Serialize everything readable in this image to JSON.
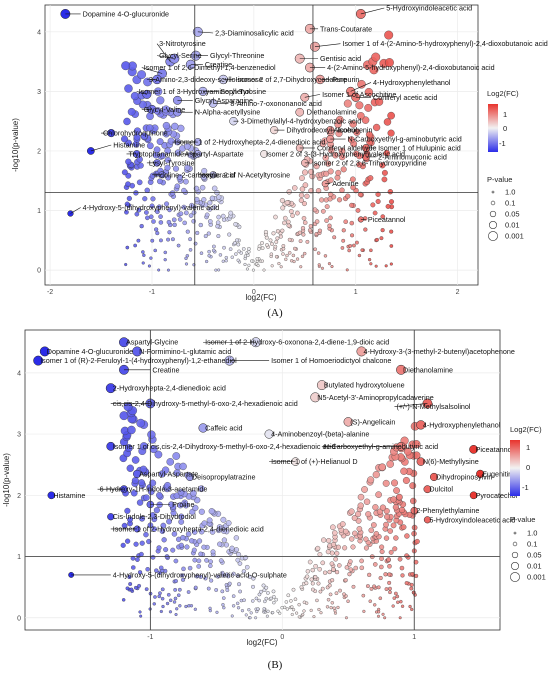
{
  "colors": {
    "high": "#e8332d",
    "mid": "#f2f2f2",
    "low": "#2b2ce8",
    "grid": "#ebebeb",
    "threshold": "#333333"
  },
  "chart_data": [
    {
      "type": "scatter",
      "panel_label": "(A)",
      "xlabel": "log2(FC)",
      "ylabel": "-log10(p-value)",
      "xlim": [
        -2.05,
        2.2
      ],
      "ylim": [
        -0.25,
        4.45
      ],
      "x_ticks": [
        -2,
        -1,
        0,
        1,
        2
      ],
      "y_ticks": [
        0,
        1,
        2,
        3,
        4
      ],
      "thresholds": {
        "x": [
          -0.58,
          0.58
        ],
        "y": 1.3
      },
      "grid": true,
      "legend_position": "right",
      "color_legend": {
        "title": "Log2(FC)",
        "ticks": [
          "1",
          "0",
          "-1"
        ],
        "range": [
          -1.6,
          1.6
        ]
      },
      "size_legend": {
        "title": "P-value",
        "labels": [
          "1.0",
          "0.1",
          "0.05",
          "0.01",
          "0.001"
        ]
      },
      "labeled_points": [
        {
          "label": "Dopamine 4-O-glucuronide",
          "x": -1.85,
          "y": 4.3,
          "lx": -1.7,
          "ly": 4.3
        },
        {
          "label": "5-Hydroxyindoleacetic acid",
          "x": 1.05,
          "y": 4.3,
          "lx": 1.28,
          "ly": 4.4
        },
        {
          "label": "2,3-Diaminosalicylic acid",
          "x": -0.55,
          "y": 4.0,
          "lx": -0.4,
          "ly": 3.98
        },
        {
          "label": "Trans-Coutarate",
          "x": 0.55,
          "y": 4.05,
          "lx": 0.63,
          "ly": 4.05
        },
        {
          "label": "3-Nitrotyrosine",
          "x": -0.82,
          "y": 3.5,
          "lx": -0.95,
          "ly": 3.8
        },
        {
          "label": "Isomer 1 of 4-(2-Amino-5-hydroxyphenyl)-2,4-dioxobutanoic acid",
          "x": 0.6,
          "y": 3.75,
          "lx": 0.85,
          "ly": 3.8
        },
        {
          "label": "Glycyl-Serine",
          "x": -0.78,
          "y": 3.55,
          "lx": -0.95,
          "ly": 3.6
        },
        {
          "label": "Glycyl-Threonine",
          "x": -0.57,
          "y": 3.6,
          "lx": -0.45,
          "ly": 3.6
        },
        {
          "label": "Gentisic acid",
          "x": 0.45,
          "y": 3.55,
          "lx": 0.63,
          "ly": 3.55
        },
        {
          "label": "Isomer 1 of 2,6-Dimethyl-1,4-benzenediol",
          "x": -0.9,
          "y": 3.3,
          "lx": -1.1,
          "ly": 3.4
        },
        {
          "label": "Creatine",
          "x": -0.62,
          "y": 3.45,
          "lx": -0.5,
          "ly": 3.45
        },
        {
          "label": "4-(2-Amino-5-hydroxyphenyl)-2,4-dioxobutanoic acid",
          "x": 0.55,
          "y": 3.4,
          "lx": 0.7,
          "ly": 3.4
        },
        {
          "label": "3-Amino-2,3-dideoxy-scyllo-inosose",
          "x": -0.95,
          "y": 3.2,
          "lx": -1.05,
          "ly": 3.2
        },
        {
          "label": "Isomer 2 of 2,7-Dihydroxycadalene",
          "x": -0.3,
          "y": 3.2,
          "lx": -0.2,
          "ly": 3.2
        },
        {
          "label": "Purpurin",
          "x": 0.65,
          "y": 3.2,
          "lx": 0.75,
          "ly": 3.2
        },
        {
          "label": "4-Hydroxyphenylethanol",
          "x": 0.95,
          "y": 3.0,
          "lx": 1.15,
          "ly": 3.15
        },
        {
          "label": "Isomer 1 of 3-Hydroxyaminophenol",
          "x": -1.05,
          "y": 2.95,
          "lx": -1.15,
          "ly": 3.0
        },
        {
          "label": "Seryl-Tyrosine",
          "x": -0.5,
          "y": 3.0,
          "lx": -0.35,
          "ly": 3.0
        },
        {
          "label": "Isomer 1 of Ascochitine",
          "x": 0.5,
          "y": 2.9,
          "lx": 0.65,
          "ly": 2.95
        },
        {
          "label": "Coniferyl acetic acid",
          "x": 1.0,
          "y": 2.9,
          "lx": 1.15,
          "ly": 2.9
        },
        {
          "label": "Glycyl-Asparagine",
          "x": -0.75,
          "y": 2.85,
          "lx": -0.6,
          "ly": 2.85
        },
        {
          "label": "8-Amino-7-oxononanoic acid",
          "x": -0.4,
          "y": 2.8,
          "lx": -0.25,
          "ly": 2.8
        },
        {
          "label": "Glycyl-Valine",
          "x": -1.0,
          "y": 2.7,
          "lx": -1.1,
          "ly": 2.7
        },
        {
          "label": "N-Alpha-acetyllysine",
          "x": -0.75,
          "y": 2.65,
          "lx": -0.6,
          "ly": 2.65
        },
        {
          "label": "Diethanolamine",
          "x": 0.45,
          "y": 2.65,
          "lx": 0.5,
          "ly": 2.65
        },
        {
          "label": "3-Dimethylallyl-4-hydroxybenzoic acid",
          "x": -0.2,
          "y": 2.5,
          "lx": -0.15,
          "ly": 2.5
        },
        {
          "label": "Chlorohydroquinone",
          "x": -1.4,
          "y": 2.3,
          "lx": -1.5,
          "ly": 2.3
        },
        {
          "label": "Dihydrodeoxyl Alcohol",
          "x": 0.2,
          "y": 2.35,
          "lx": 0.3,
          "ly": 2.35
        },
        {
          "label": "Isoeugenin",
          "x": 0.75,
          "y": 2.35,
          "lx": 0.8,
          "ly": 2.35
        },
        {
          "label": "Histamine",
          "x": -1.6,
          "y": 2.0,
          "lx": -1.4,
          "ly": 2.1
        },
        {
          "label": "Isomer 1 of 2-Hydroxyhepta-2,4-dienedioic acid",
          "x": -0.55,
          "y": 2.15,
          "lx": -0.8,
          "ly": 2.15
        },
        {
          "label": "N-Carboxyethyl-g-aminobutyric acid",
          "x": 0.75,
          "y": 2.2,
          "lx": 0.9,
          "ly": 2.2
        },
        {
          "label": "Coniferyl aldehyde",
          "x": 0.45,
          "y": 2.05,
          "lx": 0.6,
          "ly": 2.05
        },
        {
          "label": "Tryptophanamide",
          "x": -1.15,
          "y": 1.95,
          "lx": -1.25,
          "ly": 1.95
        },
        {
          "label": "Aspartyl-Aspartate",
          "x": -0.55,
          "y": 1.95,
          "lx": -0.7,
          "ly": 1.95
        },
        {
          "label": "Isomer 2 of 3-(3-Hydroxyphenyl)valeric acid",
          "x": 0.1,
          "y": 1.95,
          "lx": 0.1,
          "ly": 1.95
        },
        {
          "label": "Isomer 1 of Hulupinic acid",
          "x": 1.1,
          "y": 2.05,
          "lx": 1.2,
          "ly": 2.05
        },
        {
          "label": "Lysyl-Tyrosine",
          "x": -0.95,
          "y": 1.8,
          "lx": -1.05,
          "ly": 1.8
        },
        {
          "label": "Isomer 2 of 2,3,6-Trihydroxypyridine",
          "x": 0.5,
          "y": 1.8,
          "lx": 0.55,
          "ly": 1.8
        },
        {
          "label": "2-Aminomuconic acid",
          "x": 1.1,
          "y": 1.9,
          "lx": 1.2,
          "ly": 1.9
        },
        {
          "label": "Indoline-2-carboxylic acid",
          "x": -0.9,
          "y": 1.6,
          "lx": -1.0,
          "ly": 1.6
        },
        {
          "label": "Isomer 2 of N-Acetyltyrosine",
          "x": -0.4,
          "y": 1.6,
          "lx": -0.55,
          "ly": 1.6
        },
        {
          "label": "4-Hydroxy-5-(dihydroxyphenyl)-valeric acid",
          "x": -1.8,
          "y": 0.95,
          "lx": -1.7,
          "ly": 1.05
        },
        {
          "label": "Adenine",
          "x": 0.7,
          "y": 1.45,
          "lx": 0.75,
          "ly": 1.45
        },
        {
          "label": "Piceatannol",
          "x": 1.05,
          "y": 0.85,
          "lx": 1.1,
          "ly": 0.85
        }
      ]
    },
    {
      "type": "scatter",
      "panel_label": "(B)",
      "xlabel": "log2(FC)",
      "ylabel": "-log10(p-value)",
      "xlim": [
        -1.95,
        1.65
      ],
      "ylim": [
        -0.2,
        4.7
      ],
      "x_ticks": [
        -1,
        0,
        1
      ],
      "y_ticks": [
        0,
        1,
        2,
        3,
        4
      ],
      "thresholds": {
        "x": [
          -1.0,
          1.0
        ],
        "y": 1.0
      },
      "grid": true,
      "legend_position": "right",
      "color_legend": {
        "title": "Log2(FC)",
        "ticks": [
          "1",
          "0",
          "-1"
        ],
        "range": [
          -1.5,
          1.5
        ]
      },
      "size_legend": {
        "title": "P-value",
        "labels": [
          "1.0",
          "0.1",
          "0.05",
          "0.01",
          "0.001"
        ]
      },
      "labeled_points": [
        {
          "label": "Aspartyl-Glycine",
          "x": -1.2,
          "y": 4.5,
          "lx": -1.2,
          "ly": 4.5
        },
        {
          "label": "Isomer 1 of 2-Hydroxy-6-oxonona-2,4-diene-1,9-dioic acid",
          "x": -0.2,
          "y": 4.5,
          "lx": -0.6,
          "ly": 4.5
        },
        {
          "label": "Dopamine 4-O-glucuronide",
          "x": -1.8,
          "y": 4.35,
          "lx": -1.8,
          "ly": 4.35
        },
        {
          "label": "N-Formimino-L-glutamic acid",
          "x": -1.1,
          "y": 4.35,
          "lx": -1.1,
          "ly": 4.35
        },
        {
          "label": "4-Hydroxy-3-(3-methyl-2-butenyl)acetophenone",
          "x": 0.6,
          "y": 4.35,
          "lx": 0.6,
          "ly": 4.35
        },
        {
          "label": "Isomer 1 of (R)-2-Feruloyl-1-(4-hydroxyphenyl)-1,2-ethanediol",
          "x": -1.85,
          "y": 4.2,
          "lx": -1.85,
          "ly": 4.2
        },
        {
          "label": "Isomer 1 of Homoeriodictyol chalcone",
          "x": -0.4,
          "y": 4.2,
          "lx": -0.1,
          "ly": 4.2
        },
        {
          "label": "Diethanolamine",
          "x": 0.9,
          "y": 4.05,
          "lx": 0.9,
          "ly": 4.05
        },
        {
          "label": "Creatine",
          "x": -1.2,
          "y": 4.05,
          "lx": -1.0,
          "ly": 4.05
        },
        {
          "label": "Butylated hydroxytoluene",
          "x": 0.3,
          "y": 3.8,
          "lx": 0.3,
          "ly": 3.8
        },
        {
          "label": "2-Hydroxyhepta-2,4-dienedioic acid",
          "x": -1.3,
          "y": 3.75,
          "lx": -1.3,
          "ly": 3.75
        },
        {
          "label": "N5-Acetyl-3'-Aminopropylcadaverine",
          "x": 0.25,
          "y": 3.6,
          "lx": 0.25,
          "ly": 3.6
        },
        {
          "label": "(+/-)-N-Methylsalsolinol",
          "x": 1.1,
          "y": 3.5,
          "lx": 0.85,
          "ly": 3.45
        },
        {
          "label": "cis,cis-2,4-Dihydroxy-5-methyl-6-oxo-2,4-hexadienoic acid",
          "x": -1.0,
          "y": 3.5,
          "lx": -1.3,
          "ly": 3.5
        },
        {
          "label": "(S)-Angelicain",
          "x": 0.5,
          "y": 3.2,
          "lx": 0.5,
          "ly": 3.2
        },
        {
          "label": "4-Hydroxyphenylethanol",
          "x": 1.05,
          "y": 3.15,
          "lx": 1.05,
          "ly": 3.15
        },
        {
          "label": "Caffeic acid",
          "x": -0.6,
          "y": 3.1,
          "lx": -0.6,
          "ly": 3.1
        },
        {
          "label": "4-Aminobenzoyl-(beta)-alanine",
          "x": -0.1,
          "y": 3.0,
          "lx": -0.1,
          "ly": 3.0
        },
        {
          "label": "Isomer 1 of cis,cis-2,4-Dihydroxy-5-methyl-6-oxo-2,4-hexadienoic acid",
          "x": -1.3,
          "y": 2.8,
          "lx": -1.3,
          "ly": 2.8
        },
        {
          "label": "N-Carboxyethyl-g-aminobutyric acid",
          "x": 0.9,
          "y": 2.8,
          "lx": 0.3,
          "ly": 2.8
        },
        {
          "label": "Piceatannol",
          "x": 1.45,
          "y": 2.75,
          "lx": 1.45,
          "ly": 2.75
        },
        {
          "label": "Isomer 1 of (+)-Helianuol D",
          "x": 0.1,
          "y": 2.55,
          "lx": -0.1,
          "ly": 2.55
        },
        {
          "label": "N(6)-Methyllysine",
          "x": 1.05,
          "y": 2.55,
          "lx": 1.05,
          "ly": 2.55
        },
        {
          "label": "Aspartyl-Aspartate",
          "x": -1.1,
          "y": 2.35,
          "lx": -1.1,
          "ly": 2.35
        },
        {
          "label": "Deisopropylatrazine",
          "x": -0.7,
          "y": 2.3,
          "lx": -0.7,
          "ly": 2.3
        },
        {
          "label": "Eugenitin",
          "x": 1.5,
          "y": 2.35,
          "lx": 1.5,
          "ly": 2.35
        },
        {
          "label": "Dihydropinosylvin",
          "x": 1.15,
          "y": 2.3,
          "lx": 1.15,
          "ly": 2.3
        },
        {
          "label": "Dulcitol",
          "x": 1.1,
          "y": 2.1,
          "lx": 1.1,
          "ly": 2.1
        },
        {
          "label": "6-Hydroxy-1H-indole-3-acetamide",
          "x": -1.2,
          "y": 2.1,
          "lx": -1.4,
          "ly": 2.1
        },
        {
          "label": "Histamine",
          "x": -1.75,
          "y": 2.0,
          "lx": -1.75,
          "ly": 2.0
        },
        {
          "label": "Pyrocatechol",
          "x": 1.45,
          "y": 2.0,
          "lx": 1.45,
          "ly": 2.0
        },
        {
          "label": "Proline",
          "x": -1.0,
          "y": 1.85,
          "lx": -0.85,
          "ly": 1.85
        },
        {
          "label": "2-Phenylethylamine",
          "x": 1.0,
          "y": 1.75,
          "lx": 1.0,
          "ly": 1.75
        },
        {
          "label": "Cis-Indole-2,3-Dihydrodiol",
          "x": -1.3,
          "y": 1.65,
          "lx": -1.3,
          "ly": 1.65
        },
        {
          "label": "5-Hydroxyindoleacetic acid",
          "x": 1.1,
          "y": 1.6,
          "lx": 1.1,
          "ly": 1.6
        },
        {
          "label": "Isomer 1 of 2-Hydroxyhepta-2,4-dienedioic acid",
          "x": -1.1,
          "y": 1.45,
          "lx": -1.3,
          "ly": 1.45
        },
        {
          "label": "4-Hydroxy-5-(dihydroxyphenyl)-valeric acid-O-sulphate",
          "x": -1.6,
          "y": 0.7,
          "lx": -1.3,
          "ly": 0.7
        }
      ]
    }
  ]
}
